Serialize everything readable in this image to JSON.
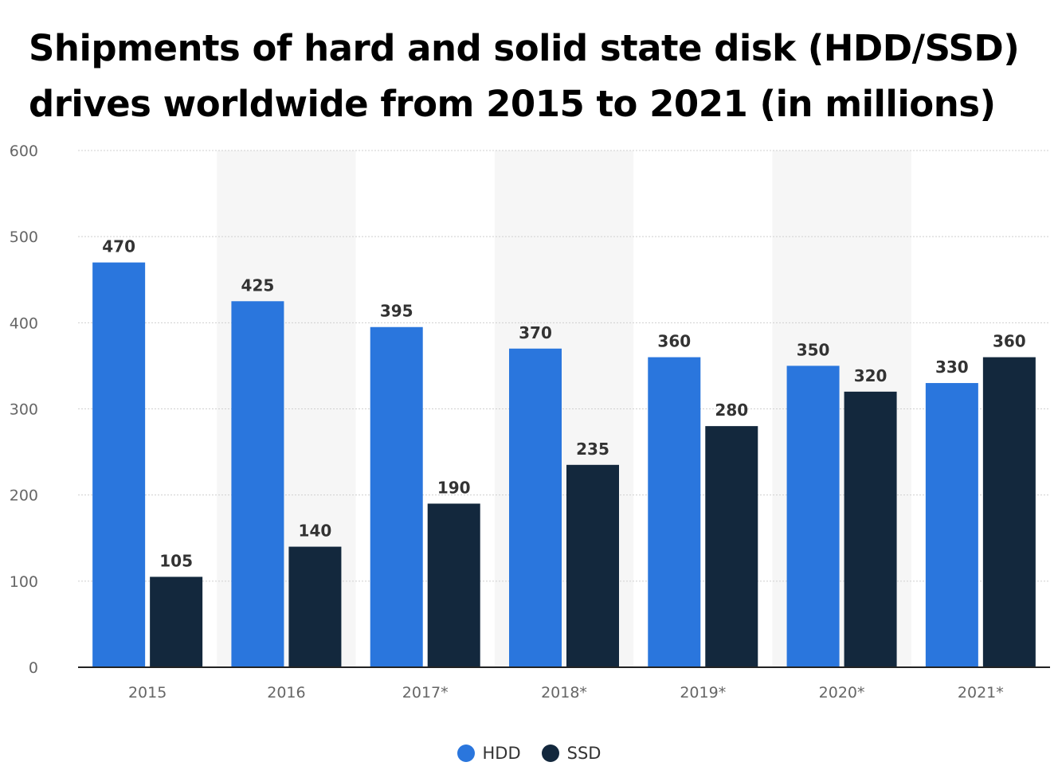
{
  "chart_data": {
    "type": "bar",
    "title": "Shipments of hard and solid state disk (HDD/SSD) drives worldwide from 2015 to 2021 (in millions)",
    "xlabel": "",
    "ylabel": "",
    "categories": [
      "2015",
      "2016",
      "2017*",
      "2018*",
      "2019*",
      "2020*",
      "2021*"
    ],
    "series": [
      {
        "name": "HDD",
        "color": "#2a76dd",
        "values": [
          470,
          425,
          395,
          370,
          360,
          350,
          330
        ]
      },
      {
        "name": "SSD",
        "color": "#13283d",
        "values": [
          105,
          140,
          190,
          235,
          280,
          320,
          360
        ]
      }
    ],
    "ylim": [
      0,
      600
    ],
    "yticks": [
      "0",
      "100",
      "200",
      "300",
      "400",
      "500",
      "600"
    ],
    "grid": true,
    "legend": "bottom-center",
    "data_labels": true
  }
}
